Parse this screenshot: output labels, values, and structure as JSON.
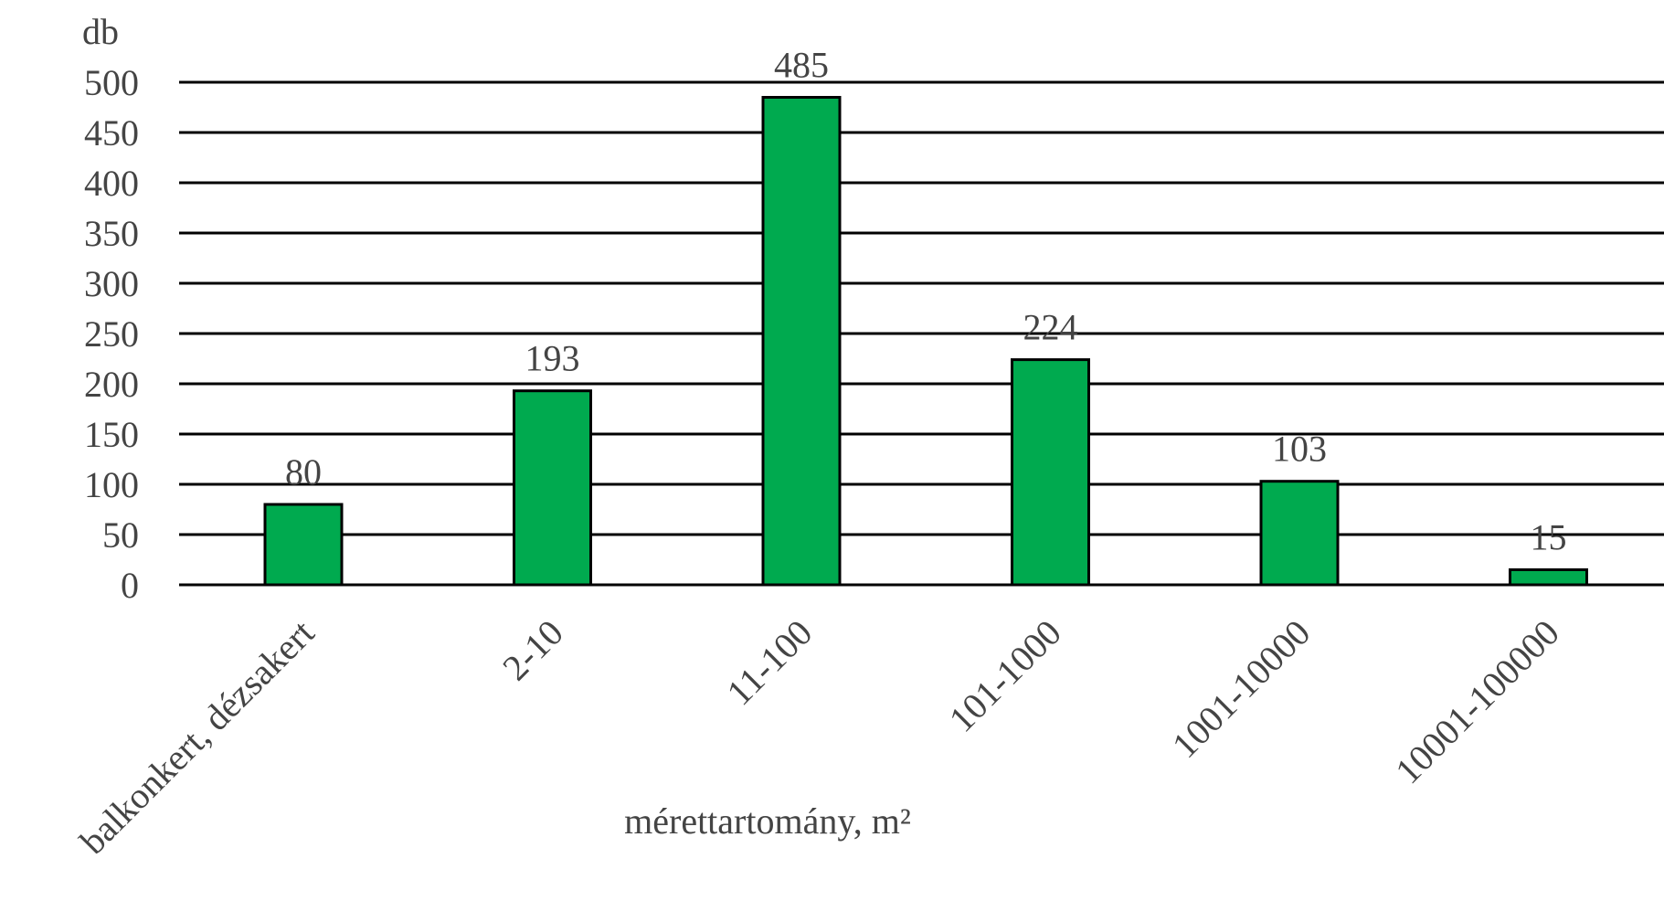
{
  "chart_data": {
    "type": "bar",
    "categories": [
      "balkonkert, dézsakert",
      "2-10",
      "11-100",
      "101-1000",
      "1001-10000",
      "10001-100000"
    ],
    "values": [
      80,
      193,
      485,
      224,
      103,
      15
    ],
    "data_labels": [
      "80",
      "193",
      "485",
      "224",
      "103",
      "15"
    ],
    "title": "",
    "xlabel": "mérettartomány, m²",
    "ylabel": "db",
    "ylim": [
      0,
      500
    ],
    "yticks": [
      0,
      50,
      100,
      150,
      200,
      250,
      300,
      350,
      400,
      450,
      500
    ],
    "grid": true,
    "legend": "none",
    "bar_color": "#00AA4F",
    "edge_color": "#000000",
    "text_color": "#444444"
  }
}
